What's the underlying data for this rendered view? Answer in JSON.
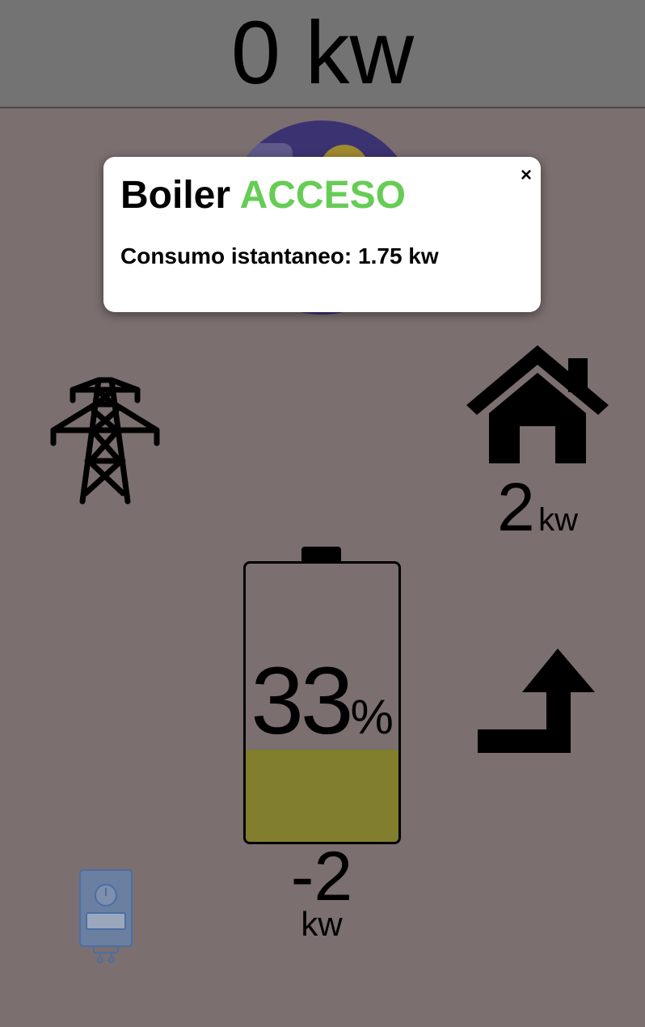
{
  "header": {
    "total_power": "0 kw"
  },
  "modal": {
    "device_name": "Boiler",
    "status": "ACCESO",
    "status_color": "#66cc55",
    "consumption_text": "Consumo istantaneo: 1.75 kw",
    "close_symbol": "×"
  },
  "grid": {
    "icon": "power-pylon-icon"
  },
  "house": {
    "icon": "house-icon",
    "power_value": "2",
    "power_unit": "kw"
  },
  "battery": {
    "icon": "battery-icon",
    "charge_percent": 33,
    "charge_value": "33",
    "charge_unit": "%",
    "fill_color": "#817e2e",
    "power_value": "-2",
    "power_unit": "kw"
  },
  "flow": {
    "icon": "arrow-up-right-icon"
  },
  "boiler": {
    "icon": "water-heater-icon",
    "color": "#4a6fa5"
  },
  "solar": {
    "icon": "solar-weather-icon"
  }
}
